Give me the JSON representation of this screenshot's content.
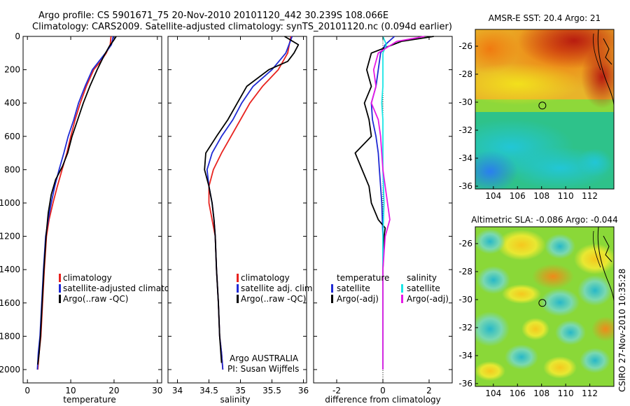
{
  "header": {
    "title_line1": "Argo profile: CS 5901671_75 20-Nov-2010 20101120_442 30.239S 108.066E",
    "title_line2": "Climatology: CARS2009. Satellite-adjusted climatology: synTS_20101120.nc (0.094d earlier)"
  },
  "side_text": "CSIRO 27-Nov-2010 10:35:28",
  "notes": {
    "argo_line1": "Argo AUSTRALIA",
    "argo_line2": "PI: Susan Wijffels"
  },
  "colors": {
    "red": "#e8231f",
    "blue": "#1f2ad4",
    "black": "#000000",
    "cyan": "#19e6e6",
    "magenta": "#e619e6"
  },
  "chart_data": [
    {
      "type": "line",
      "xlabel": "temperature",
      "ylabel": "",
      "xlim": [
        -1,
        31
      ],
      "ylim": [
        2080,
        0
      ],
      "xticks": [
        0,
        10,
        20,
        30
      ],
      "yticks": [
        0,
        200,
        400,
        600,
        800,
        1000,
        1200,
        1400,
        1600,
        1800,
        2000
      ],
      "legend": [
        "climatology",
        "satellite-adjusted climatology",
        "Argo(..raw -QC)"
      ],
      "series": [
        {
          "name": "climatology",
          "color": "#e8231f",
          "x": [
            19.3,
            19.1,
            18.2,
            16.9,
            15.3,
            13.6,
            12.2,
            11.0,
            10.0,
            9.1,
            8.0,
            6.9,
            5.9,
            5.0,
            4.4,
            3.9,
            3.5,
            3.1,
            2.7,
            2.4
          ],
          "y": [
            0,
            50,
            100,
            150,
            200,
            300,
            400,
            500,
            600,
            700,
            800,
            900,
            1000,
            1100,
            1200,
            1400,
            1600,
            1800,
            1900,
            2000
          ]
        },
        {
          "name": "satellite-adjusted climatology",
          "color": "#1f2ad4",
          "x": [
            19.8,
            19.4,
            18.0,
            16.5,
            15.0,
            13.3,
            11.8,
            10.7,
            9.4,
            8.4,
            7.3,
            6.3,
            5.5,
            4.8,
            4.2,
            3.7,
            3.3,
            2.9,
            2.5,
            2.3
          ],
          "y": [
            0,
            50,
            100,
            150,
            200,
            300,
            400,
            500,
            600,
            700,
            800,
            900,
            1000,
            1100,
            1200,
            1400,
            1600,
            1800,
            1900,
            2000
          ]
        },
        {
          "name": "Argo(..raw -QC)",
          "color": "#000000",
          "x": [
            20.5,
            20.0,
            18.9,
            17.6,
            16.1,
            14.4,
            12.9,
            11.6,
            10.3,
            9.3,
            8.1,
            6.5,
            5.5,
            4.8,
            4.3,
            3.8,
            3.4,
            3.0,
            2.7,
            2.4
          ],
          "y": [
            0,
            20,
            60,
            120,
            200,
            300,
            400,
            500,
            600,
            700,
            780,
            860,
            950,
            1060,
            1200,
            1400,
            1600,
            1800,
            1900,
            1970
          ]
        }
      ]
    },
    {
      "type": "line",
      "xlabel": "salinity",
      "ylabel": "",
      "xlim": [
        33.85,
        36.05
      ],
      "ylim": [
        2080,
        0
      ],
      "xticks": [
        34,
        34.5,
        35,
        35.5,
        36
      ],
      "yticks": [
        0,
        200,
        400,
        600,
        800,
        1000,
        1200,
        1400,
        1600,
        1800,
        2000
      ],
      "legend": [
        "climatology",
        "satellite adj. clim.",
        "Argo(..raw -QC)"
      ],
      "series": [
        {
          "name": "climatology",
          "color": "#e8231f",
          "x": [
            35.8,
            35.75,
            35.6,
            35.35,
            35.15,
            35.0,
            34.85,
            34.7,
            34.57,
            34.5,
            34.5,
            34.55,
            34.6,
            34.62,
            34.65,
            34.67,
            34.7,
            34.72
          ],
          "y": [
            0,
            100,
            200,
            300,
            400,
            500,
            600,
            700,
            800,
            900,
            1000,
            1100,
            1200,
            1400,
            1600,
            1800,
            1900,
            2000
          ]
        },
        {
          "name": "satellite adj. clim.",
          "color": "#1f2ad4",
          "x": [
            35.82,
            35.72,
            35.5,
            35.2,
            35.02,
            34.88,
            34.7,
            34.55,
            34.47,
            34.5,
            34.55,
            34.58,
            34.6,
            34.62,
            34.65,
            34.67,
            34.7,
            34.72
          ],
          "y": [
            0,
            100,
            200,
            300,
            400,
            500,
            600,
            700,
            800,
            900,
            1000,
            1100,
            1200,
            1400,
            1600,
            1800,
            1900,
            2000
          ]
        },
        {
          "name": "Argo(..raw -QC)",
          "color": "#000000",
          "x": [
            35.7,
            35.92,
            35.85,
            35.75,
            35.45,
            35.1,
            34.95,
            34.8,
            34.62,
            34.45,
            34.43,
            34.5,
            34.55,
            34.58,
            34.6,
            34.62,
            34.65,
            34.67,
            34.7
          ],
          "y": [
            0,
            50,
            100,
            150,
            200,
            300,
            400,
            500,
            600,
            700,
            800,
            900,
            1000,
            1100,
            1200,
            1400,
            1600,
            1800,
            1960
          ]
        }
      ]
    },
    {
      "type": "line",
      "xlabel": "difference from climatology",
      "ylabel": "",
      "xlim": [
        -3,
        3
      ],
      "ylim": [
        2080,
        0
      ],
      "xticks": [
        -2,
        0,
        2
      ],
      "yticks": [
        0,
        200,
        400,
        600,
        800,
        1000,
        1200,
        1400,
        1600,
        1800,
        2000
      ],
      "legend_headers": [
        "temperature",
        "salinity"
      ],
      "legend": [
        "satellite",
        "Argo(-adj)",
        "satellite",
        "Argo(-adj)"
      ],
      "series": [
        {
          "name": "satellite",
          "color": "#1f2ad4",
          "x": [
            0.5,
            0.1,
            -0.1,
            -0.2,
            -0.3,
            -0.5,
            -0.45,
            -0.3,
            -0.2,
            -0.15,
            -0.1,
            -0.05,
            0.0,
            0.0,
            0.0,
            0.0
          ],
          "y": [
            0,
            50,
            100,
            200,
            300,
            400,
            500,
            600,
            700,
            800,
            900,
            1000,
            1200,
            1400,
            1600,
            2000
          ]
        },
        {
          "name": "Argo(-adj)",
          "color": "#000000",
          "x": [
            2.2,
            0.8,
            -0.5,
            -0.7,
            -0.5,
            -0.8,
            -0.6,
            -0.5,
            -1.2,
            -0.9,
            -0.6,
            -0.5,
            -0.2,
            0.1,
            0.05,
            0.0,
            0.0,
            0.0,
            0.0
          ],
          "y": [
            0,
            30,
            100,
            200,
            300,
            400,
            500,
            600,
            700,
            800,
            900,
            1000,
            1100,
            1150,
            1200,
            1400,
            1600,
            1800,
            2000
          ]
        },
        {
          "name": "satellite",
          "color": "#19e6e6",
          "x": [
            0.0,
            0.15,
            0.0,
            0.0,
            0.0,
            -0.05,
            0.0,
            0.0,
            0.0,
            0.05,
            0.0,
            0.0,
            0.0,
            0.0
          ],
          "y": [
            0,
            50,
            100,
            200,
            300,
            400,
            500,
            600,
            800,
            1000,
            1200,
            1400,
            1600,
            2000
          ]
        },
        {
          "name": "Argo(-adj)",
          "color": "#e619e6",
          "x": [
            1.8,
            0.6,
            -0.2,
            -0.4,
            -0.3,
            -0.5,
            -0.2,
            -0.1,
            0.0,
            0.2,
            0.3,
            0.1,
            0.05,
            0.0,
            0.0,
            0.0
          ],
          "y": [
            0,
            30,
            100,
            200,
            300,
            400,
            500,
            600,
            800,
            1000,
            1100,
            1200,
            1300,
            1400,
            1600,
            2000
          ]
        }
      ]
    },
    {
      "type": "heatmap",
      "title": "AMSR-E SST: 20.4 Argo: 21",
      "xlim": [
        102.5,
        114
      ],
      "ylim": [
        -36.2,
        -24.8
      ],
      "xticks": [
        104,
        106,
        108,
        110,
        112
      ],
      "yticks": [
        -26,
        -28,
        -30,
        -32,
        -34,
        -36
      ],
      "argo_position": {
        "lon": 108.066,
        "lat": -30.239
      }
    },
    {
      "type": "heatmap",
      "title": "Altimetric SLA: -0.086 Argo: -0.044",
      "xlim": [
        102.5,
        114
      ],
      "ylim": [
        -36.2,
        -24.8
      ],
      "xticks": [
        104,
        106,
        108,
        110,
        112
      ],
      "yticks": [
        -26,
        -28,
        -30,
        -32,
        -34,
        -36
      ],
      "argo_position": {
        "lon": 108.066,
        "lat": -30.239
      }
    }
  ]
}
